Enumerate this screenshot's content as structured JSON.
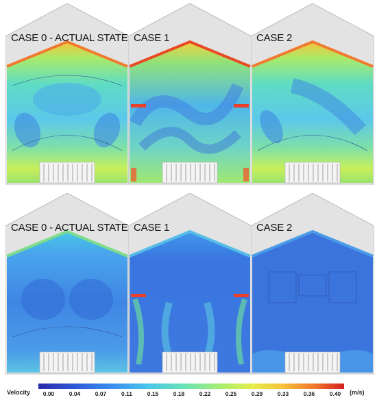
{
  "panels": [
    {
      "caption": "CASE 0 - ACTUAL STATE"
    },
    {
      "caption": "CASE 1"
    },
    {
      "caption": "CASE 2"
    },
    {
      "caption": "CASE 0 - ACTUAL STATE"
    },
    {
      "caption": "CASE 1"
    },
    {
      "caption": "CASE 2"
    }
  ],
  "legend": {
    "title": "Velocity",
    "unit": "(m/s)",
    "ticks": [
      "0.00",
      "0.04",
      "0.07",
      "0.11",
      "0.15",
      "0.18",
      "0.22",
      "0.25",
      "0.29",
      "0.33",
      "0.36",
      "0.40"
    ]
  }
}
